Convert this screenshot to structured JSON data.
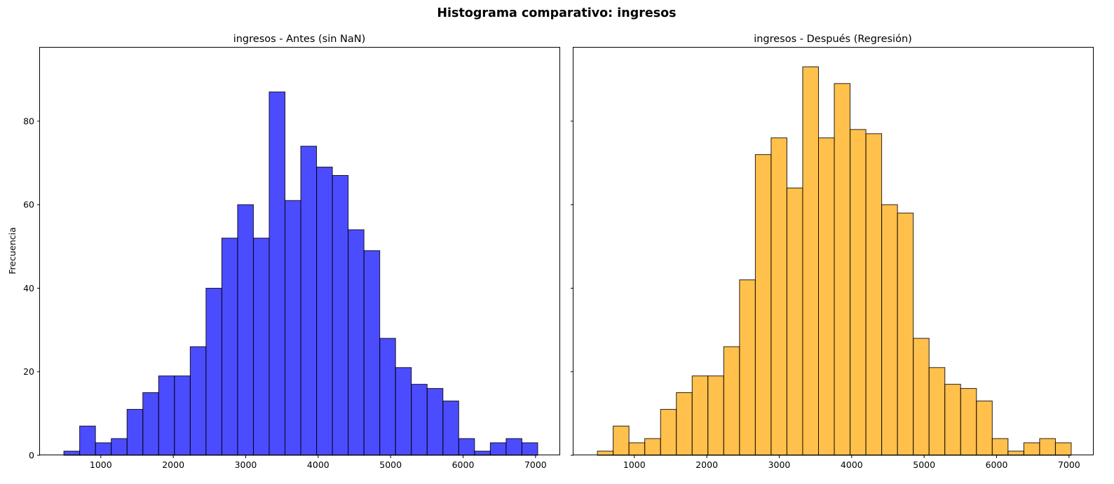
{
  "figure": {
    "title": "Histograma comparativo: ingresos"
  },
  "chart_data": [
    {
      "type": "bar",
      "title": "ingresos - Antes (sin NaN)",
      "xlabel": "",
      "ylabel": "Frecuencia",
      "color": "#0000ff",
      "opacity": 0.7,
      "xlim": [
        160,
        7340
      ],
      "ylim": [
        0,
        97.6
      ],
      "xticks": [
        1000,
        2000,
        3000,
        4000,
        5000,
        6000,
        7000
      ],
      "yticks": [
        0,
        20,
        40,
        60,
        80
      ],
      "bin_edges": [
        490,
        708,
        926,
        1144,
        1362,
        1580,
        1798,
        2016,
        2234,
        2452,
        2670,
        2888,
        3106,
        3324,
        3542,
        3760,
        3978,
        4196,
        4414,
        4632,
        4850,
        5068,
        5286,
        5504,
        5722,
        5940,
        6158,
        6376,
        6594,
        6812,
        7030
      ],
      "values": [
        1,
        7,
        3,
        4,
        11,
        15,
        19,
        19,
        26,
        40,
        52,
        60,
        52,
        87,
        61,
        74,
        69,
        67,
        54,
        49,
        28,
        21,
        17,
        16,
        13,
        4,
        1,
        3,
        4,
        3
      ]
    },
    {
      "type": "bar",
      "title": "ingresos - Después (Regresión)",
      "xlabel": "",
      "ylabel": "",
      "color": "#ffa500",
      "opacity": 0.7,
      "xlim": [
        160,
        7340
      ],
      "ylim": [
        0,
        97.6
      ],
      "xticks": [
        1000,
        2000,
        3000,
        4000,
        5000,
        6000,
        7000
      ],
      "yticks": [
        0,
        20,
        40,
        60,
        80
      ],
      "bin_edges": [
        490,
        708,
        926,
        1144,
        1362,
        1580,
        1798,
        2016,
        2234,
        2452,
        2670,
        2888,
        3106,
        3324,
        3542,
        3760,
        3978,
        4196,
        4414,
        4632,
        4850,
        5068,
        5286,
        5504,
        5722,
        5940,
        6158,
        6376,
        6594,
        6812,
        7030
      ],
      "values": [
        1,
        7,
        3,
        4,
        11,
        15,
        19,
        19,
        26,
        42,
        72,
        76,
        64,
        93,
        76,
        89,
        78,
        77,
        60,
        58,
        28,
        21,
        17,
        16,
        13,
        4,
        1,
        3,
        4,
        3
      ]
    }
  ]
}
